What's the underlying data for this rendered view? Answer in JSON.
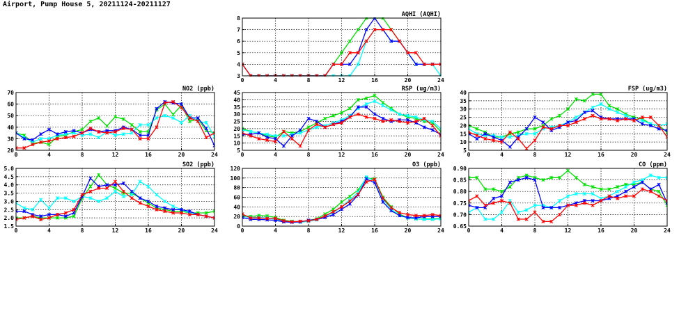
{
  "page": {
    "title": "Airport, Pump House 5, 20211124-20211127"
  },
  "series_colors": [
    "#00e000",
    "#00ffff",
    "#0000ff",
    "#ff0000"
  ],
  "chart_data": [
    {
      "type": "line",
      "title": "AQHI (AQHI)",
      "x": [
        0,
        1,
        2,
        3,
        4,
        5,
        6,
        7,
        8,
        9,
        10,
        11,
        12,
        13,
        14,
        15,
        16,
        17,
        18,
        19,
        20,
        21,
        22,
        23,
        24
      ],
      "xticks": [
        0,
        4,
        8,
        12,
        16,
        20,
        24
      ],
      "ylim": [
        3,
        8
      ],
      "yticks": [
        3,
        4,
        5,
        6,
        7,
        8
      ],
      "grid": true,
      "series": [
        {
          "color": "#00e000",
          "values": [
            4,
            3,
            3,
            3,
            3,
            3,
            3,
            3,
            3,
            3,
            3,
            4,
            5,
            6,
            7,
            8,
            8,
            8,
            7,
            6,
            5,
            4,
            4,
            4,
            4
          ]
        },
        {
          "color": "#00ffff",
          "values": [
            4,
            3,
            3,
            3,
            3,
            3,
            3,
            3,
            3,
            3,
            3,
            3,
            3,
            3,
            4,
            6,
            7,
            7,
            6,
            6,
            5,
            4,
            4,
            4,
            3
          ]
        },
        {
          "color": "#0000ff",
          "values": [
            4,
            3,
            3,
            3,
            3,
            3,
            3,
            3,
            3,
            3,
            3,
            4,
            4,
            4,
            5,
            7,
            8,
            7,
            6,
            6,
            5,
            4,
            4,
            4,
            4
          ]
        },
        {
          "color": "#ff0000",
          "values": [
            4,
            3,
            3,
            3,
            3,
            3,
            3,
            3,
            3,
            3,
            3,
            4,
            4,
            5,
            5,
            6,
            7,
            7,
            7,
            6,
            5,
            5,
            4,
            4,
            4
          ]
        }
      ]
    },
    {
      "type": "line",
      "title": "NO2 (ppb)",
      "x": [
        0,
        1,
        2,
        3,
        4,
        5,
        6,
        7,
        8,
        9,
        10,
        11,
        12,
        13,
        14,
        15,
        16,
        17,
        18,
        19,
        20,
        21,
        22,
        23,
        24
      ],
      "xticks": [
        0,
        4,
        8,
        12,
        16,
        20,
        24
      ],
      "ylim": [
        20,
        70
      ],
      "yticks": [
        20,
        30,
        40,
        50,
        60,
        70
      ],
      "grid": true,
      "series": [
        {
          "color": "#00e000",
          "values": [
            35,
            33,
            26,
            27,
            25,
            32,
            33,
            36,
            38,
            45,
            48,
            41,
            49,
            47,
            42,
            36,
            36,
            55,
            60,
            51,
            59,
            45,
            47,
            37,
            35
          ]
        },
        {
          "color": "#00ffff",
          "values": [
            35,
            31,
            27,
            30,
            30,
            33,
            34,
            35,
            33,
            34,
            31,
            36,
            33,
            34,
            35,
            42,
            42,
            48,
            50,
            48,
            44,
            50,
            45,
            44,
            32
          ]
        },
        {
          "color": "#0000ff",
          "values": [
            35,
            30,
            29,
            34,
            38,
            34,
            36,
            37,
            35,
            38,
            36,
            37,
            37,
            40,
            38,
            33,
            33,
            56,
            62,
            61,
            60,
            48,
            48,
            39,
            24
          ]
        },
        {
          "color": "#ff0000",
          "values": [
            22,
            22,
            25,
            27,
            28,
            30,
            31,
            32,
            35,
            39,
            36,
            35,
            36,
            39,
            38,
            30,
            30,
            40,
            61,
            62,
            57,
            48,
            45,
            31,
            35
          ]
        }
      ]
    },
    {
      "type": "line",
      "title": "RSP (ug/m3)",
      "x": [
        0,
        1,
        2,
        3,
        4,
        5,
        6,
        7,
        8,
        9,
        10,
        11,
        12,
        13,
        14,
        15,
        16,
        17,
        18,
        19,
        20,
        21,
        22,
        23,
        24
      ],
      "xticks": [
        0,
        4,
        8,
        12,
        16,
        20,
        24
      ],
      "ylim": [
        5,
        45
      ],
      "yticks": [
        5,
        10,
        15,
        20,
        25,
        30,
        35,
        40,
        45
      ],
      "grid": true,
      "series": [
        {
          "color": "#00e000",
          "values": [
            20,
            18,
            17,
            15,
            14,
            18,
            17,
            18,
            21,
            24,
            27,
            29,
            31,
            34,
            40,
            41,
            43,
            38,
            34,
            30,
            28,
            27,
            25,
            24,
            18
          ]
        },
        {
          "color": "#00ffff",
          "values": [
            19,
            18,
            17,
            16,
            15,
            15,
            16,
            17,
            19,
            21,
            22,
            24,
            26,
            29,
            34,
            37,
            39,
            36,
            33,
            30,
            29,
            28,
            26,
            25,
            20
          ]
        },
        {
          "color": "#0000ff",
          "values": [
            16,
            16,
            17,
            14,
            13,
            8,
            15,
            19,
            27,
            25,
            21,
            23,
            25,
            28,
            35,
            35,
            30,
            27,
            25,
            26,
            26,
            24,
            21,
            19,
            16
          ]
        },
        {
          "color": "#ff0000",
          "values": [
            17,
            15,
            13,
            12,
            11,
            18,
            13,
            8,
            19,
            23,
            21,
            23,
            24,
            28,
            30,
            28,
            27,
            25,
            26,
            25,
            24,
            25,
            27,
            22,
            15
          ]
        }
      ]
    },
    {
      "type": "line",
      "title": "FSP (ug/m3)",
      "x": [
        0,
        1,
        2,
        3,
        4,
        5,
        6,
        7,
        8,
        9,
        10,
        11,
        12,
        13,
        14,
        15,
        16,
        17,
        18,
        19,
        20,
        21,
        22,
        23,
        24
      ],
      "xticks": [
        0,
        4,
        8,
        12,
        16,
        20,
        24
      ],
      "ylim": [
        5,
        40
      ],
      "yticks": [
        5,
        10,
        15,
        20,
        25,
        30,
        35,
        40
      ],
      "grid": true,
      "series": [
        {
          "color": "#00e000",
          "values": [
            20,
            18,
            16,
            13,
            13,
            15,
            16,
            18,
            18,
            20,
            24,
            26,
            30,
            36,
            35,
            39,
            39,
            32,
            30,
            27,
            25,
            24,
            21,
            20,
            16
          ]
        },
        {
          "color": "#00ffff",
          "values": [
            18,
            15,
            14,
            14,
            13,
            13,
            14,
            15,
            15,
            18,
            19,
            20,
            22,
            25,
            28,
            31,
            33,
            30,
            28,
            26,
            24,
            23,
            21,
            20,
            21
          ]
        },
        {
          "color": "#0000ff",
          "values": [
            15,
            12,
            15,
            13,
            11,
            7,
            13,
            18,
            25,
            22,
            17,
            19,
            22,
            23,
            28,
            29,
            25,
            24,
            24,
            24,
            24,
            21,
            20,
            18,
            17
          ]
        },
        {
          "color": "#ff0000",
          "values": [
            16,
            14,
            12,
            11,
            10,
            16,
            12,
            6,
            11,
            19,
            18,
            20,
            20,
            22,
            24,
            26,
            24,
            24,
            23,
            24,
            23,
            25,
            25,
            20,
            13
          ]
        }
      ]
    },
    {
      "type": "line",
      "title": "SO2 (ppb)",
      "x": [
        0,
        1,
        2,
        3,
        4,
        5,
        6,
        7,
        8,
        9,
        10,
        11,
        12,
        13,
        14,
        15,
        16,
        17,
        18,
        19,
        20,
        21,
        22,
        23,
        24
      ],
      "xticks": [
        0,
        4,
        8,
        12,
        16,
        20,
        24
      ],
      "ylim": [
        1.5,
        5.0
      ],
      "yticks": [
        1.5,
        2.0,
        2.5,
        3.0,
        3.5,
        4.0,
        4.5,
        5.0
      ],
      "grid": true,
      "series": [
        {
          "color": "#00e000",
          "values": [
            2.0,
            2.0,
            2.1,
            2.0,
            2.0,
            2.0,
            2.0,
            2.1,
            3.2,
            3.9,
            4.6,
            4.0,
            3.8,
            3.5,
            3.5,
            3.2,
            2.9,
            2.6,
            2.5,
            2.4,
            2.4,
            2.3,
            2.3,
            2.3,
            2.4
          ]
        },
        {
          "color": "#00ffff",
          "values": [
            2.9,
            2.6,
            2.5,
            3.1,
            2.6,
            3.2,
            3.2,
            3.0,
            3.3,
            3.2,
            3.0,
            3.2,
            3.6,
            3.3,
            3.4,
            4.2,
            3.9,
            3.4,
            3.0,
            2.7,
            2.5,
            2.3,
            2.2,
            2.1,
            2.0
          ]
        },
        {
          "color": "#0000ff",
          "values": [
            2.4,
            2.4,
            2.2,
            2.1,
            2.2,
            2.2,
            2.1,
            2.3,
            3.3,
            4.4,
            3.9,
            4.0,
            4.0,
            4.1,
            3.6,
            3.2,
            3.0,
            2.7,
            2.6,
            2.5,
            2.5,
            2.4,
            2.2,
            2.1,
            2.0
          ]
        },
        {
          "color": "#ff0000",
          "values": [
            1.9,
            2.0,
            2.1,
            1.9,
            2.0,
            2.2,
            2.3,
            2.5,
            3.4,
            3.6,
            3.8,
            3.8,
            4.2,
            3.6,
            3.2,
            2.9,
            2.7,
            2.5,
            2.4,
            2.3,
            2.3,
            2.2,
            2.2,
            2.1,
            2.0
          ]
        }
      ]
    },
    {
      "type": "line",
      "title": "O3 (ppb)",
      "x": [
        0,
        1,
        2,
        3,
        4,
        5,
        6,
        7,
        8,
        9,
        10,
        11,
        12,
        13,
        14,
        15,
        16,
        17,
        18,
        19,
        20,
        21,
        22,
        23,
        24
      ],
      "xticks": [
        0,
        4,
        8,
        12,
        16,
        20,
        24
      ],
      "ylim": [
        0,
        120
      ],
      "yticks": [
        0,
        20,
        40,
        60,
        80,
        100,
        120
      ],
      "grid": true,
      "series": [
        {
          "color": "#00e000",
          "values": [
            22,
            20,
            22,
            21,
            18,
            12,
            10,
            9,
            12,
            15,
            25,
            35,
            50,
            62,
            75,
            100,
            98,
            60,
            40,
            25,
            17,
            15,
            15,
            15,
            16
          ]
        },
        {
          "color": "#00ffff",
          "values": [
            20,
            18,
            18,
            17,
            14,
            10,
            9,
            8,
            10,
            13,
            20,
            28,
            40,
            55,
            70,
            102,
            94,
            55,
            35,
            22,
            17,
            15,
            14,
            14,
            15
          ]
        },
        {
          "color": "#0000ff",
          "values": [
            18,
            14,
            14,
            13,
            12,
            9,
            8,
            9,
            12,
            14,
            18,
            24,
            35,
            46,
            65,
            98,
            90,
            50,
            32,
            22,
            18,
            17,
            20,
            20,
            20
          ]
        },
        {
          "color": "#ff0000",
          "values": [
            25,
            17,
            17,
            16,
            16,
            11,
            9,
            10,
            11,
            14,
            21,
            30,
            40,
            52,
            66,
            92,
            97,
            58,
            38,
            28,
            24,
            22,
            22,
            24,
            22
          ]
        }
      ]
    },
    {
      "type": "line",
      "title": "CO (ppm)",
      "x": [
        0,
        1,
        2,
        3,
        4,
        5,
        6,
        7,
        8,
        9,
        10,
        11,
        12,
        13,
        14,
        15,
        16,
        17,
        18,
        19,
        20,
        21,
        22,
        23,
        24
      ],
      "xticks": [
        0,
        4,
        8,
        12,
        16,
        20,
        24
      ],
      "ylim": [
        0.65,
        0.9
      ],
      "yticks": [
        0.65,
        0.7,
        0.75,
        0.8,
        0.85,
        0.9
      ],
      "grid": true,
      "series": [
        {
          "color": "#00e000",
          "values": [
            0.86,
            0.86,
            0.81,
            0.81,
            0.8,
            0.82,
            0.86,
            0.87,
            0.86,
            0.85,
            0.86,
            0.86,
            0.89,
            0.86,
            0.83,
            0.82,
            0.81,
            0.81,
            0.82,
            0.83,
            0.83,
            0.84,
            0.81,
            0.8,
            0.74
          ]
        },
        {
          "color": "#00ffff",
          "values": [
            0.71,
            0.73,
            0.68,
            0.68,
            0.71,
            0.76,
            0.71,
            0.72,
            0.74,
            0.74,
            0.73,
            0.76,
            0.78,
            0.79,
            0.79,
            0.79,
            0.77,
            0.78,
            0.8,
            0.82,
            0.84,
            0.85,
            0.87,
            0.86,
            0.86
          ]
        },
        {
          "color": "#0000ff",
          "values": [
            0.74,
            0.73,
            0.73,
            0.77,
            0.78,
            0.84,
            0.85,
            0.86,
            0.85,
            0.73,
            0.73,
            0.73,
            0.74,
            0.75,
            0.76,
            0.76,
            0.76,
            0.77,
            0.78,
            0.8,
            0.82,
            0.84,
            0.81,
            0.83,
            0.75
          ]
        },
        {
          "color": "#ff0000",
          "values": [
            0.76,
            0.78,
            0.74,
            0.75,
            0.76,
            0.75,
            0.68,
            0.68,
            0.71,
            0.67,
            0.67,
            0.7,
            0.74,
            0.74,
            0.75,
            0.74,
            0.76,
            0.78,
            0.77,
            0.78,
            0.78,
            0.81,
            0.8,
            0.78,
            0.76
          ]
        }
      ]
    }
  ]
}
